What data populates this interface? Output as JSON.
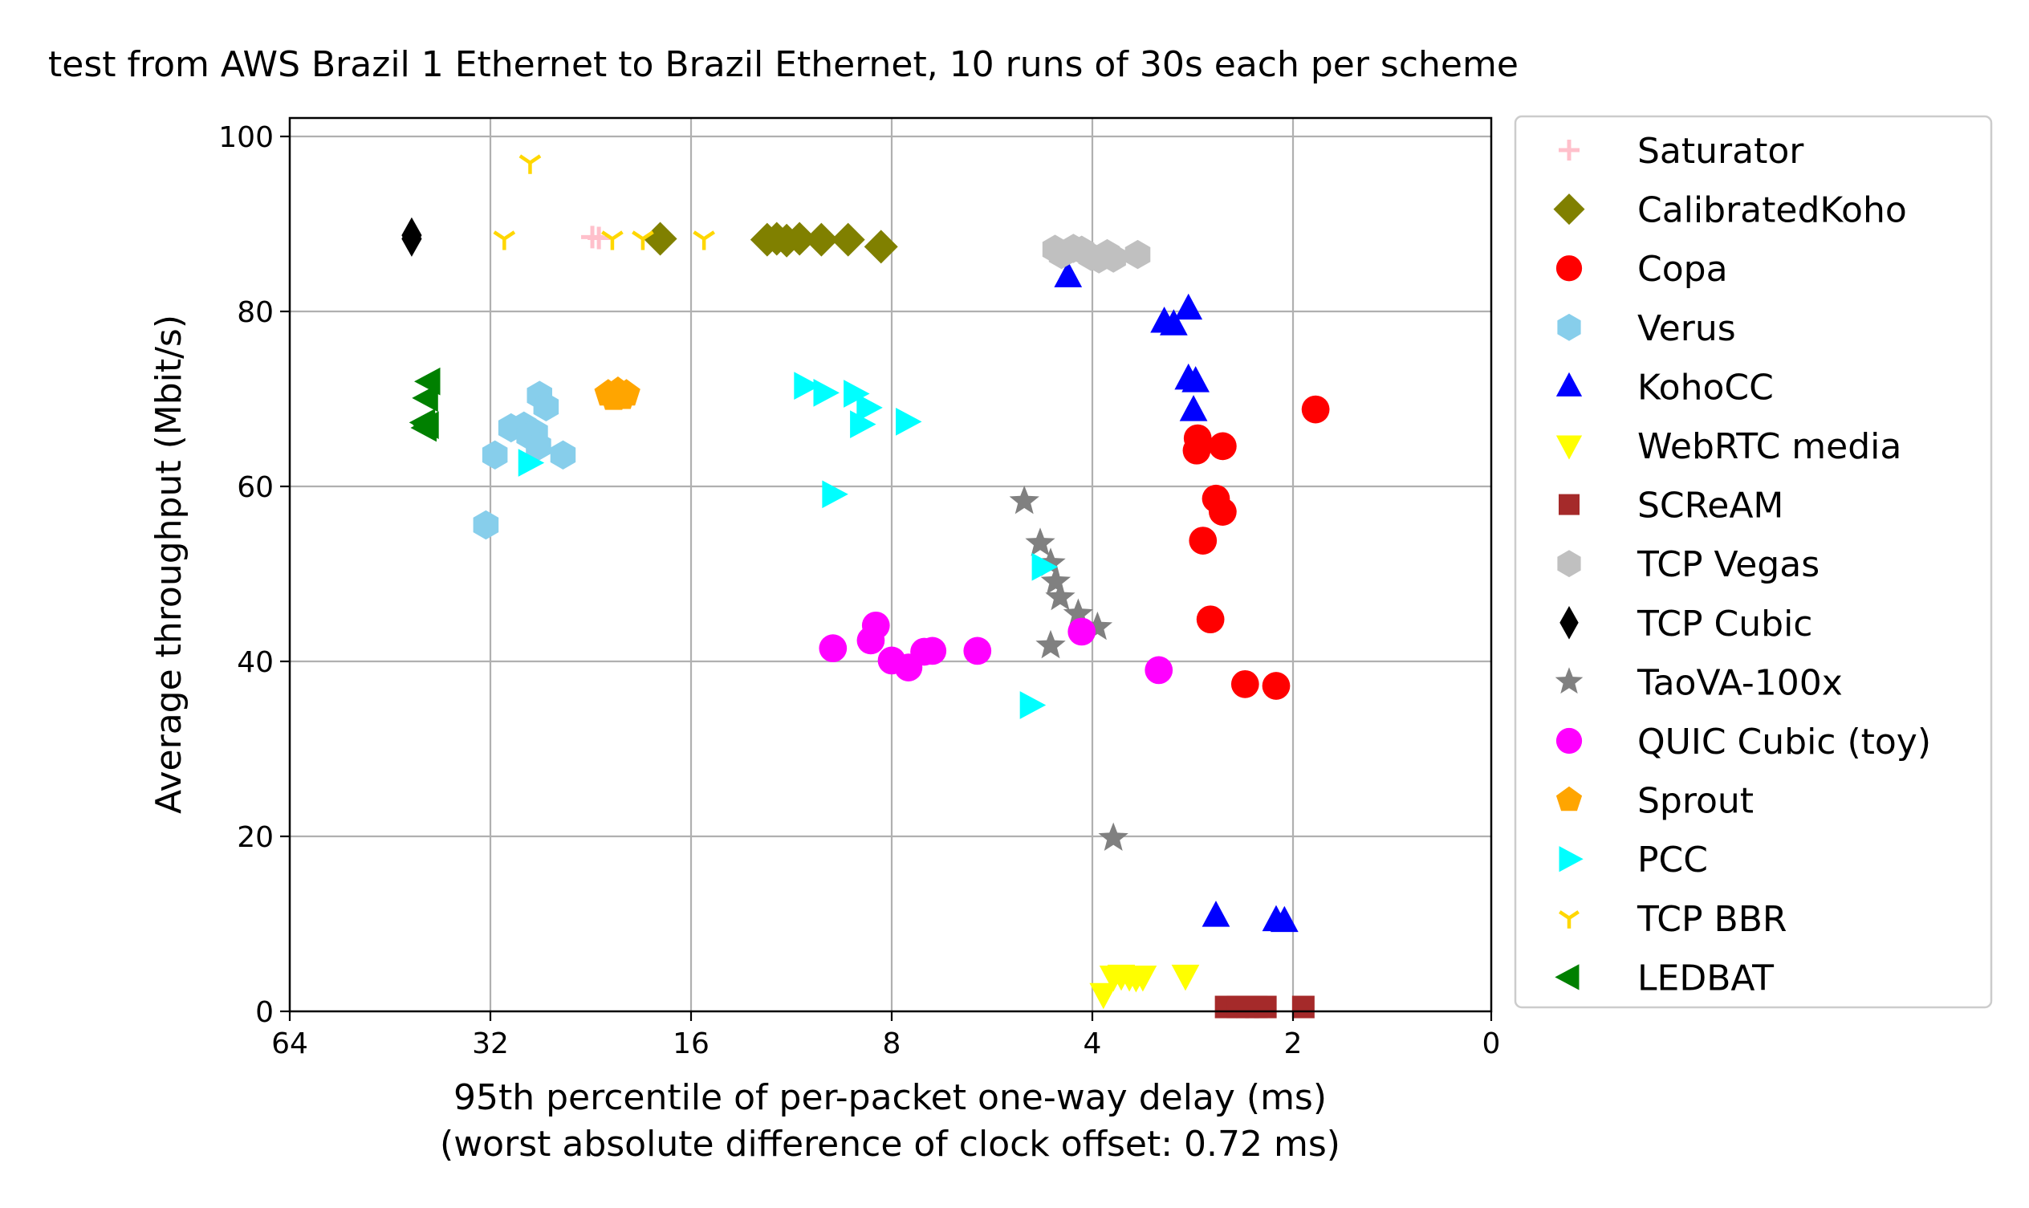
{
  "chart_data": {
    "type": "scatter",
    "title": "test from AWS Brazil 1 Ethernet to Brazil Ethernet, 10 runs of 30s each per scheme",
    "xlabel": "95th percentile of per-packet one-way delay (ms)",
    "xlabel2": "(worst absolute difference of clock offset: 0.72 ms)",
    "ylabel": "Average throughput (Mbit/s)",
    "x_scale": "log2, inverted",
    "x_ticks": [
      64,
      32,
      16,
      8,
      4,
      2,
      0
    ],
    "x_tick_labels": [
      "64",
      "32",
      "16",
      "8",
      "4",
      "2",
      "0"
    ],
    "y_ticks": [
      0,
      20,
      40,
      60,
      80,
      100
    ],
    "y_tick_labels": [
      "0",
      "20",
      "40",
      "60",
      "80",
      "100"
    ],
    "ylim": [
      0,
      102
    ],
    "grid": true,
    "legend_position": "outside-right",
    "series": [
      {
        "name": "Saturator",
        "color": "#ffc0cb",
        "marker": "plus",
        "points": [
          [
            22.0,
            88.4
          ],
          [
            22.5,
            88.5
          ]
        ]
      },
      {
        "name": "CalibratedKoho",
        "color": "#808000",
        "marker": "diamond",
        "points": [
          [
            17.8,
            88.3
          ],
          [
            12.3,
            88.2
          ],
          [
            11.9,
            88.3
          ],
          [
            11.5,
            88.1
          ],
          [
            11.0,
            88.3
          ],
          [
            10.2,
            88.2
          ],
          [
            9.3,
            88.2
          ],
          [
            8.3,
            87.4
          ]
        ]
      },
      {
        "name": "Copa",
        "color": "#ff0000",
        "marker": "circle",
        "points": [
          [
            2.78,
            65.5
          ],
          [
            2.79,
            64.1
          ],
          [
            2.55,
            64.6
          ],
          [
            2.61,
            58.6
          ],
          [
            2.55,
            57.1
          ],
          [
            2.73,
            53.8
          ],
          [
            2.66,
            44.8
          ],
          [
            2.36,
            37.4
          ],
          [
            2.12,
            37.2
          ],
          [
            1.85,
            68.8
          ]
        ]
      },
      {
        "name": "Verus",
        "color": "#87ceeb",
        "marker": "hexagon",
        "points": [
          [
            31.5,
            63.6
          ],
          [
            29.8,
            66.7
          ],
          [
            28.5,
            66.9
          ],
          [
            28.0,
            65.8
          ],
          [
            27.4,
            66.1
          ],
          [
            27.1,
            64.6
          ],
          [
            27.0,
            70.4
          ],
          [
            26.4,
            69.1
          ],
          [
            24.9,
            63.6
          ],
          [
            32.5,
            55.6
          ]
        ]
      },
      {
        "name": "KohoCC",
        "color": "#0000ff",
        "marker": "triangle-up",
        "points": [
          [
            4.35,
            84.0
          ],
          [
            3.12,
            78.8
          ],
          [
            3.02,
            78.5
          ],
          [
            2.87,
            80.3
          ],
          [
            2.87,
            72.3
          ],
          [
            2.8,
            72.0
          ],
          [
            2.82,
            68.7
          ],
          [
            2.61,
            10.9
          ],
          [
            2.12,
            10.4
          ],
          [
            2.06,
            10.3
          ]
        ]
      },
      {
        "name": "WebRTC media",
        "color": "#ffff00",
        "marker": "triangle-down",
        "points": [
          [
            3.85,
            2.0
          ],
          [
            3.72,
            4.0
          ],
          [
            3.62,
            4.1
          ],
          [
            3.52,
            4.0
          ],
          [
            3.44,
            3.9
          ],
          [
            3.36,
            4.0
          ],
          [
            2.9,
            4.1
          ]
        ]
      },
      {
        "name": "SCReAM",
        "color": "#a52a2a",
        "marker": "square",
        "points": [
          [
            2.52,
            0.5
          ],
          [
            2.42,
            0.5
          ],
          [
            2.34,
            0.5
          ],
          [
            2.27,
            0.5
          ],
          [
            2.2,
            0.5
          ],
          [
            1.93,
            0.5
          ]
        ]
      },
      {
        "name": "TCP Vegas",
        "color": "#c0c0c0",
        "marker": "hexagon",
        "points": [
          [
            4.45,
            86.5
          ],
          [
            4.27,
            87.2
          ],
          [
            4.15,
            87.0
          ],
          [
            4.02,
            86.3
          ],
          [
            3.91,
            86.0
          ],
          [
            3.8,
            86.6
          ],
          [
            3.72,
            86.1
          ],
          [
            3.42,
            86.5
          ],
          [
            4.55,
            87.1
          ]
        ]
      },
      {
        "name": "TCP Cubic",
        "color": "#000000",
        "marker": "diamond-thin",
        "points": [
          [
            42.0,
            88.3
          ],
          [
            42.0,
            88.7
          ]
        ]
      },
      {
        "name": "TaoVA-100x",
        "color": "#808080",
        "marker": "star",
        "points": [
          [
            5.06,
            58.3
          ],
          [
            4.79,
            53.5
          ],
          [
            4.62,
            51.2
          ],
          [
            4.54,
            49.1
          ],
          [
            4.47,
            47.3
          ],
          [
            4.2,
            45.4
          ],
          [
            3.93,
            43.9
          ],
          [
            4.62,
            41.8
          ],
          [
            3.72,
            19.8
          ]
        ]
      },
      {
        "name": "QUIC Cubic (toy)",
        "color": "#ff00ff",
        "marker": "circle",
        "points": [
          [
            9.8,
            41.5
          ],
          [
            8.6,
            42.4
          ],
          [
            8.45,
            44.1
          ],
          [
            8.0,
            40.1
          ],
          [
            7.55,
            39.3
          ],
          [
            7.15,
            41.1
          ],
          [
            6.95,
            41.2
          ],
          [
            5.95,
            41.2
          ],
          [
            4.15,
            43.4
          ],
          [
            3.18,
            39.0
          ]
        ]
      },
      {
        "name": "Sprout",
        "color": "#ffa500",
        "marker": "pentagon",
        "points": [
          [
            21.3,
            70.6
          ],
          [
            20.6,
            70.9
          ],
          [
            20.9,
            70.1
          ],
          [
            20.3,
            70.2
          ],
          [
            20.0,
            70.6
          ]
        ]
      },
      {
        "name": "PCC",
        "color": "#00ffff",
        "marker": "triangle-right",
        "points": [
          [
            10.8,
            71.5
          ],
          [
            10.1,
            70.7
          ],
          [
            9.1,
            70.6
          ],
          [
            8.9,
            67.1
          ],
          [
            8.7,
            69.0
          ],
          [
            7.6,
            67.4
          ],
          [
            9.8,
            59.1
          ],
          [
            4.75,
            50.8
          ],
          [
            4.95,
            35.0
          ],
          [
            28.0,
            62.7
          ]
        ]
      },
      {
        "name": "TCP BBR",
        "color": "#ffd700",
        "marker": "tri-down",
        "points": [
          [
            27.9,
            97.0
          ],
          [
            30.5,
            88.3
          ],
          [
            21.0,
            88.3
          ],
          [
            18.9,
            88.3
          ],
          [
            15.3,
            88.3
          ]
        ]
      },
      {
        "name": "LEDBAT",
        "color": "#008000",
        "marker": "triangle-left",
        "points": [
          [
            39.5,
            72.0
          ],
          [
            39.8,
            70.1
          ],
          [
            40.2,
            67.3
          ],
          [
            40.0,
            66.7
          ],
          [
            39.7,
            67.0
          ]
        ]
      }
    ]
  }
}
